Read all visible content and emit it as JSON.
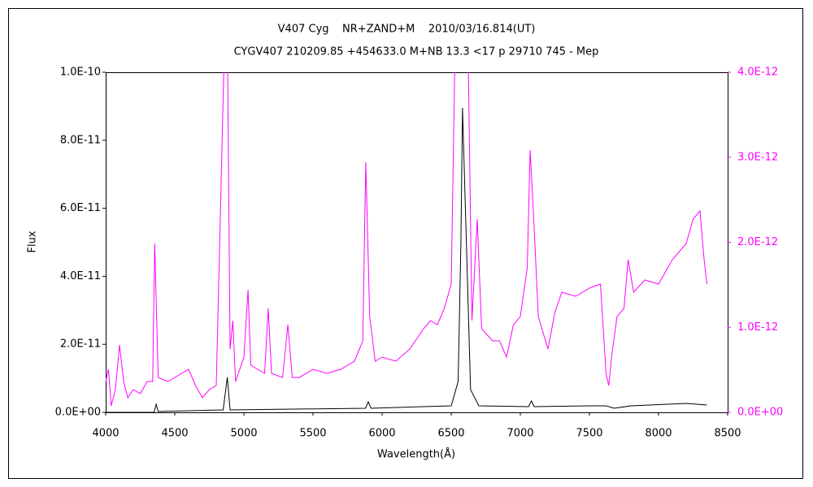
{
  "chart_data": {
    "type": "line",
    "title": "V407 Cyg    NR+ZAND+M    2010/03/16.814(UT)",
    "subtitle": "CYGV407 210209.85 +454633.0 M+NB 13.3 <17 p 29710 745 - Mep",
    "xlabel": "Wavelength(Å)",
    "ylabel": "Flux",
    "xlim": [
      4000,
      8500
    ],
    "xticks": [
      4000,
      4500,
      5000,
      5500,
      6000,
      6500,
      7000,
      7500,
      8000,
      8500
    ],
    "ylim": [
      0,
      1e-10
    ],
    "yticks": [
      {
        "value": 0,
        "label": "0.0E+00"
      },
      {
        "value": 2e-11,
        "label": "2.0E-11"
      },
      {
        "value": 4e-11,
        "label": "4.0E-11"
      },
      {
        "value": 6e-11,
        "label": "6.0E-11"
      },
      {
        "value": 8e-11,
        "label": "8.0E-11"
      },
      {
        "value": 1e-10,
        "label": "1.0E-10"
      }
    ],
    "y2lim": [
      0,
      4e-12
    ],
    "y2ticks": [
      {
        "value": 0,
        "label": "0.0E+00"
      },
      {
        "value": 1e-12,
        "label": "1.0E-12"
      },
      {
        "value": 2e-12,
        "label": "2.0E-12"
      },
      {
        "value": 3e-12,
        "label": "3.0E-12"
      },
      {
        "value": 4e-12,
        "label": "4.0E-12"
      }
    ],
    "series": [
      {
        "color": "#ff00ff",
        "axis": "y2",
        "x": [
          4000,
          4020,
          4040,
          4070,
          4100,
          4130,
          4160,
          4200,
          4250,
          4300,
          4340,
          4355,
          4380,
          4450,
          4500,
          4550,
          4600,
          4650,
          4700,
          4750,
          4800,
          4862,
          4880,
          4900,
          4920,
          4940,
          5000,
          5030,
          5050,
          5100,
          5150,
          5176,
          5200,
          5280,
          5318,
          5350,
          5400,
          5500,
          5600,
          5700,
          5800,
          5860,
          5882,
          5910,
          5950,
          6000,
          6100,
          6200,
          6300,
          6350,
          6400,
          6450,
          6500,
          6530,
          6600,
          6620,
          6650,
          6688,
          6720,
          6800,
          6850,
          6900,
          6950,
          7000,
          7050,
          7071,
          7100,
          7130,
          7200,
          7250,
          7300,
          7400,
          7500,
          7580,
          7620,
          7640,
          7660,
          7700,
          7750,
          7780,
          7820,
          7900,
          8000,
          8100,
          8200,
          8250,
          8300,
          8330,
          8350
        ],
        "values": [
          3.63e-13,
          5.06e-13,
          7.6e-14,
          2.67e-13,
          7.92e-13,
          3.63e-13,
          1.72e-13,
          2.67e-13,
          2.2e-13,
          3.63e-13,
          3.63e-13,
          1.986e-12,
          4.1e-13,
          3.63e-13,
          4.1e-13,
          4.58e-13,
          5.06e-13,
          3.15e-13,
          1.72e-13,
          2.67e-13,
          3.15e-13,
          4.5e-12,
          4.5e-12,
          7.45e-13,
          1.079e-12,
          3.63e-13,
          6.49e-13,
          1.442e-12,
          5.54e-13,
          5.06e-13,
          4.58e-13,
          1.222e-12,
          4.58e-13,
          4.1e-13,
          1.031e-12,
          4.1e-13,
          4.1e-13,
          5.06e-13,
          4.58e-13,
          5.06e-13,
          6.01e-13,
          8.4e-13,
          2.94e-12,
          1.127e-12,
          6.01e-13,
          6.49e-13,
          6.01e-13,
          7.45e-13,
          9.83e-13,
          1.079e-12,
          1.031e-12,
          1.222e-12,
          1.508e-12,
          4.5e-12,
          4.5e-12,
          4.5e-12,
          1.079e-12,
          2.272e-12,
          9.83e-13,
          8.4e-13,
          8.4e-13,
          6.49e-13,
          1.031e-12,
          1.127e-12,
          1.699e-12,
          3.084e-12,
          2.177e-12,
          1.127e-12,
          7.45e-13,
          1.174e-12,
          1.413e-12,
          1.365e-12,
          1.461e-12,
          1.508e-12,
          4.58e-13,
          3.15e-13,
          6.49e-13,
          1.127e-12,
          1.222e-12,
          1.795e-12,
          1.413e-12,
          1.556e-12,
          1.508e-12,
          1.795e-12,
          1.986e-12,
          2.272e-12,
          2.368e-12,
          1.795e-12,
          1.508e-12
        ]
      },
      {
        "color": "#000000",
        "axis": "y",
        "x": [
          4000,
          4350,
          4365,
          4380,
          4850,
          4880,
          4900,
          5880,
          5900,
          5920,
          6500,
          6550,
          6570,
          6582,
          6610,
          6640,
          6700,
          7060,
          7080,
          7100,
          7500,
          7620,
          7680,
          7800,
          8200,
          8350
        ],
        "values": [
          0,
          0,
          2.39e-12,
          2.4e-13,
          7.2e-13,
          1.03e-11,
          7.2e-13,
          1.19e-12,
          3.1e-12,
          1.19e-12,
          1.91e-12,
          9.07e-12,
          4.96e-11,
          8.95e-11,
          4.96e-11,
          6.68e-12,
          1.91e-12,
          1.67e-12,
          3.34e-12,
          1.67e-12,
          1.91e-12,
          1.91e-12,
          1.19e-12,
          1.91e-12,
          2.63e-12,
          2.15e-12
        ]
      }
    ]
  }
}
